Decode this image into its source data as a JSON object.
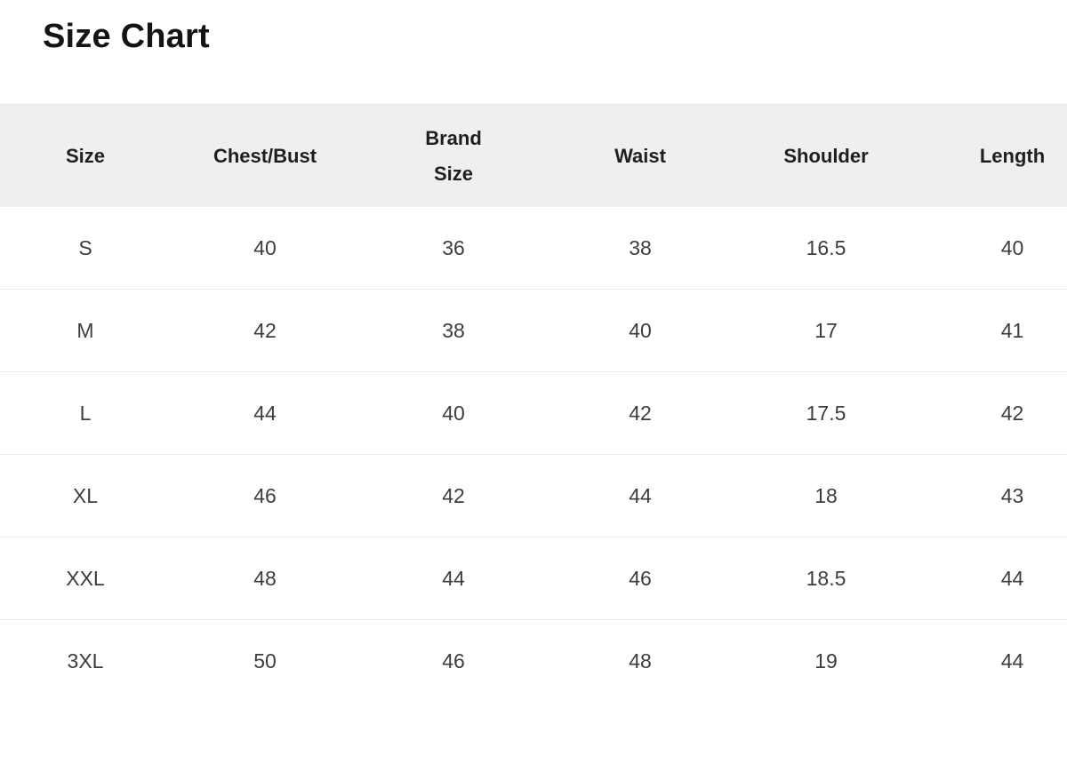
{
  "page": {
    "title": "Size Chart"
  },
  "colors": {
    "background": "#ffffff",
    "header_bg": "#efefef",
    "header_text": "#1f1f1f",
    "cell_text": "#3d3d3d",
    "row_divider": "#ebebeb",
    "title_text": "#141414"
  },
  "table": {
    "columns": [
      {
        "key": "size",
        "label": "Size",
        "two_line": false
      },
      {
        "key": "chest_bust",
        "label": "Chest/Bust",
        "two_line": false
      },
      {
        "key": "brand_size",
        "label": "Brand Size",
        "two_line": true
      },
      {
        "key": "waist",
        "label": "Waist",
        "two_line": false
      },
      {
        "key": "shoulder",
        "label": "Shoulder",
        "two_line": false
      },
      {
        "key": "length",
        "label": "Length",
        "two_line": false
      }
    ],
    "rows": [
      {
        "size": "S",
        "chest_bust": "40",
        "brand_size": "36",
        "waist": "38",
        "shoulder": "16.5",
        "length": "40"
      },
      {
        "size": "M",
        "chest_bust": "42",
        "brand_size": "38",
        "waist": "40",
        "shoulder": "17",
        "length": "41"
      },
      {
        "size": "L",
        "chest_bust": "44",
        "brand_size": "40",
        "waist": "42",
        "shoulder": "17.5",
        "length": "42"
      },
      {
        "size": "XL",
        "chest_bust": "46",
        "brand_size": "42",
        "waist": "44",
        "shoulder": "18",
        "length": "43"
      },
      {
        "size": "XXL",
        "chest_bust": "48",
        "brand_size": "44",
        "waist": "46",
        "shoulder": "18.5",
        "length": "44"
      },
      {
        "size": "3XL",
        "chest_bust": "50",
        "brand_size": "46",
        "waist": "48",
        "shoulder": "19",
        "length": "44"
      }
    ]
  },
  "chart_data": {
    "type": "table",
    "title": "Size Chart",
    "columns": [
      "Size",
      "Chest/Bust",
      "Brand Size",
      "Waist",
      "Shoulder",
      "Length"
    ],
    "rows": [
      [
        "S",
        40,
        36,
        38,
        16.5,
        40
      ],
      [
        "M",
        42,
        38,
        40,
        17,
        41
      ],
      [
        "L",
        44,
        40,
        42,
        17.5,
        42
      ],
      [
        "XL",
        46,
        42,
        44,
        18,
        43
      ],
      [
        "XXL",
        48,
        44,
        46,
        18.5,
        44
      ],
      [
        "3XL",
        50,
        46,
        48,
        19,
        44
      ]
    ]
  }
}
